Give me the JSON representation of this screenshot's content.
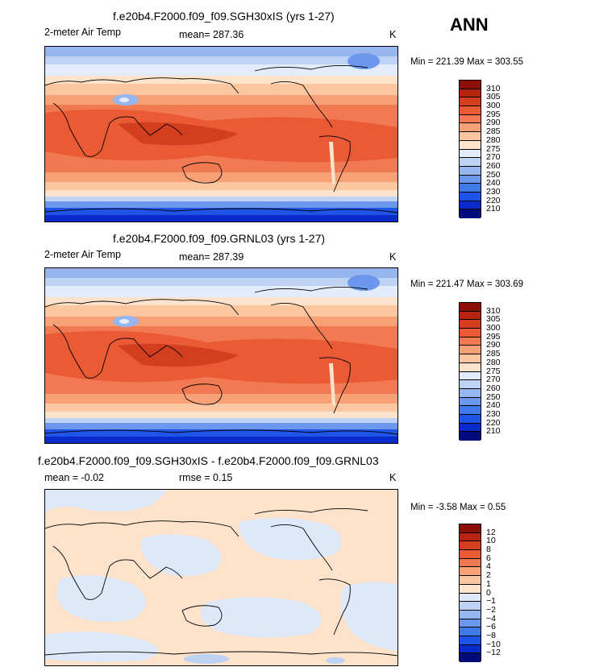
{
  "season": "ANN",
  "colors": {
    "abs_scale": [
      "#000a7a",
      "#0a2acc",
      "#1f55e6",
      "#3f7ae8",
      "#6b98ec",
      "#96b6f0",
      "#bed2f4",
      "#e2ecfa",
      "#fde3cc",
      "#fbc6a0",
      "#f8a076",
      "#f27a52",
      "#e95a35",
      "#d23e1e",
      "#b5250f",
      "#8a1007"
    ],
    "diff_scale": [
      "#000a7a",
      "#0a2acc",
      "#1f55e6",
      "#3f7ae8",
      "#6b98ec",
      "#96b6f0",
      "#bed2f4",
      "#dde8f8",
      "#fde3cc",
      "#fbc6a0",
      "#f8a076",
      "#f27a52",
      "#e95a35",
      "#d23e1e",
      "#b5250f",
      "#8a1007"
    ]
  },
  "panels": [
    {
      "title": "f.e20b4.F2000.f09_f09.SGH30xIS (yrs 1-27)",
      "field": "2-meter Air Temp",
      "stat": "mean=  287.36",
      "units": "K",
      "minmax": "Min = 221.39  Max = 303.55",
      "levels": [
        "310",
        "305",
        "300",
        "295",
        "290",
        "285",
        "280",
        "275",
        "270",
        "260",
        "250",
        "240",
        "230",
        "220",
        "210"
      ]
    },
    {
      "title": "f.e20b4.F2000.f09_f09.GRNL03 (yrs 1-27)",
      "field": "2-meter Air Temp",
      "stat": "mean=  287.39",
      "units": "K",
      "minmax": "Min = 221.47  Max = 303.69",
      "levels": [
        "310",
        "305",
        "300",
        "295",
        "290",
        "285",
        "280",
        "275",
        "270",
        "260",
        "250",
        "240",
        "230",
        "220",
        "210"
      ]
    },
    {
      "title": "f.e20b4.F2000.f09_f09.SGH30xIS - f.e20b4.F2000.f09_f09.GRNL03",
      "stat_mean": "mean =   -0.02",
      "stat_rmse": "rmse =    0.15",
      "units": "K",
      "minmax": "Min =   -3.58  Max =     0.55",
      "levels": [
        "12",
        "10",
        "8",
        "6",
        "4",
        "2",
        "1",
        "0",
        "−1",
        "−2",
        "−4",
        "−6",
        "−8",
        "−10",
        "−12"
      ]
    }
  ],
  "chart_data": [
    {
      "type": "heatmap",
      "title": "f.e20b4.F2000.f09_f09.SGH30xIS (yrs 1-27)",
      "variable": "2-meter Air Temp",
      "units": "K",
      "mean": 287.36,
      "min": 221.39,
      "max": 303.55,
      "contour_levels": [
        210,
        220,
        230,
        240,
        250,
        260,
        270,
        275,
        280,
        285,
        290,
        295,
        300,
        305,
        310
      ]
    },
    {
      "type": "heatmap",
      "title": "f.e20b4.F2000.f09_f09.GRNL03 (yrs 1-27)",
      "variable": "2-meter Air Temp",
      "units": "K",
      "mean": 287.39,
      "min": 221.47,
      "max": 303.69,
      "contour_levels": [
        210,
        220,
        230,
        240,
        250,
        260,
        270,
        275,
        280,
        285,
        290,
        295,
        300,
        305,
        310
      ]
    },
    {
      "type": "heatmap",
      "title": "f.e20b4.F2000.f09_f09.SGH30xIS - f.e20b4.F2000.f09_f09.GRNL03",
      "units": "K",
      "mean": -0.02,
      "rmse": 0.15,
      "min": -3.58,
      "max": 0.55,
      "contour_levels": [
        -12,
        -10,
        -8,
        -6,
        -4,
        -2,
        -1,
        0,
        1,
        2,
        4,
        6,
        8,
        10,
        12
      ]
    }
  ]
}
